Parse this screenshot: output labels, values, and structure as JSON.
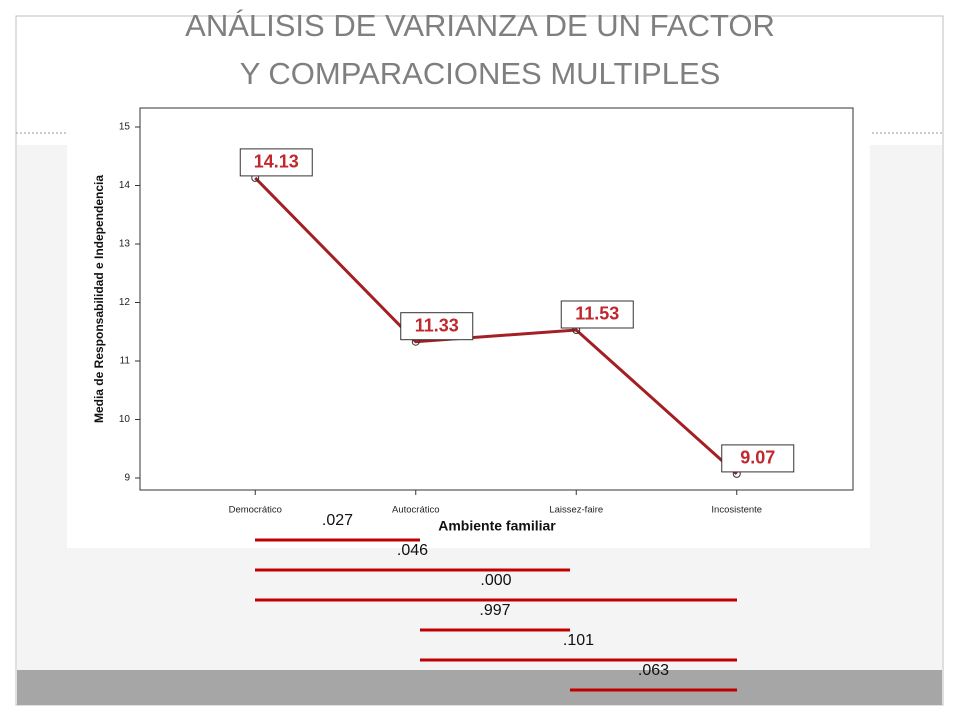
{
  "slide": {
    "title_lines": [
      "ANÁLISIS DE VARIANZA DE UN FACTOR",
      "Y COMPARACIONES MULTIPLES"
    ]
  },
  "chart_data": {
    "type": "line",
    "x_label": "Ambiente familiar",
    "y_label": "Media de Responsabilidad e Independencia",
    "categories": [
      "Democrático",
      "Autocrático",
      "Laissez-faire",
      "Incosistente"
    ],
    "values": [
      14.13,
      11.33,
      11.53,
      9.07
    ],
    "color": "#a31f24",
    "ylim": [
      9,
      15
    ],
    "yticks": [
      9,
      10,
      11,
      12,
      13,
      14,
      15
    ]
  },
  "comparisons": [
    {
      "label": ".027",
      "from": 0,
      "to": 1
    },
    {
      "label": ".046",
      "from": 0,
      "to": 2
    },
    {
      "label": ".000",
      "from": 0,
      "to": 3
    },
    {
      "label": ".997",
      "from": 1,
      "to": 2
    },
    {
      "label": ".101",
      "from": 1,
      "to": 3
    },
    {
      "label": ".063",
      "from": 2,
      "to": 3
    }
  ]
}
